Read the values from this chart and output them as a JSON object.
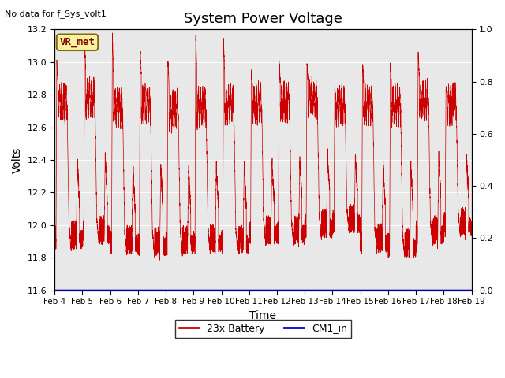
{
  "title": "System Power Voltage",
  "xlabel": "Time",
  "ylabel": "Volts",
  "no_data_text": "No data for f_Sys_volt1",
  "vr_met_label": "VR_met",
  "ylim_left": [
    11.6,
    13.2
  ],
  "ylim_right": [
    0.0,
    1.0
  ],
  "yticks_left": [
    11.6,
    11.8,
    12.0,
    12.2,
    12.4,
    12.6,
    12.8,
    13.0,
    13.2
  ],
  "yticks_right": [
    0.0,
    0.2,
    0.4,
    0.6,
    0.8,
    1.0
  ],
  "xtick_labels": [
    "Feb 4",
    "Feb 5",
    "Feb 6",
    "Feb 7",
    "Feb 8",
    "Feb 9",
    "Feb 10",
    "Feb 11",
    "Feb 12",
    "Feb 13",
    "Feb 14",
    "Feb 15",
    "Feb 16",
    "Feb 17",
    "Feb 18",
    "Feb 19"
  ],
  "bg_color": "#e8e8e8",
  "line_color_battery": "#cc0000",
  "line_color_cm1": "#0000bb",
  "legend_labels": [
    "23x Battery",
    "CM1_in"
  ],
  "title_fontsize": 13,
  "label_fontsize": 10,
  "n_days": 15,
  "points_per_day": 500,
  "peak_heights": [
    13.0,
    13.15,
    13.16,
    13.09,
    13.01,
    13.15,
    13.13,
    12.95,
    12.99,
    12.99,
    12.83,
    12.99,
    12.99,
    13.06,
    12.85
  ],
  "trough_heights": [
    11.85,
    11.88,
    11.82,
    11.81,
    11.82,
    11.83,
    11.82,
    11.88,
    11.88,
    11.92,
    11.95,
    11.83,
    11.8,
    11.88,
    11.93
  ],
  "high_plateau": [
    12.75,
    12.78,
    12.72,
    12.74,
    12.7,
    12.72,
    12.74,
    12.75,
    12.76,
    12.78,
    12.73,
    12.74,
    12.73,
    12.77,
    12.74
  ]
}
